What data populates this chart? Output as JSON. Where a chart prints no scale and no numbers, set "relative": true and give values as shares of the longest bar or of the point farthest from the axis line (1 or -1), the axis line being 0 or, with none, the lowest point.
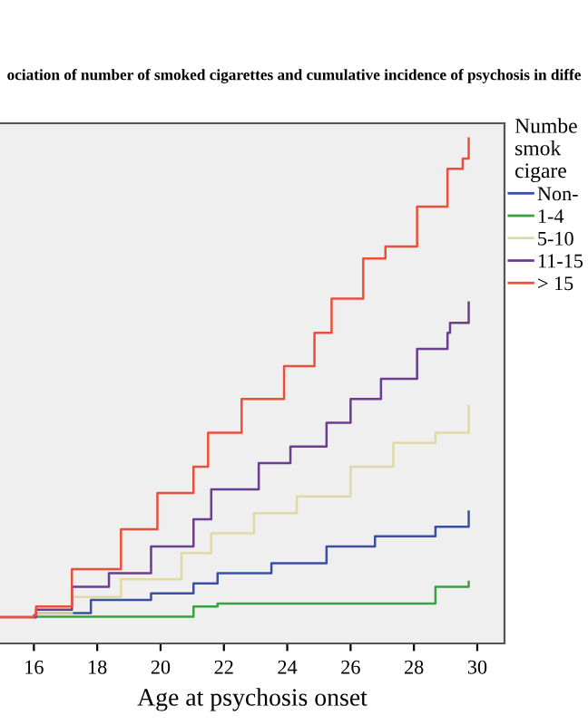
{
  "chart_data": {
    "type": "step",
    "relative": true,
    "title": "ociation of number of smoked cigarettes and cumulative incidence of psychosis in diffe",
    "xlabel": "Age at psychosis onset",
    "legend_title": "Numbe\nsmok\ncigare",
    "xlim": [
      14.93,
      30.86
    ],
    "xticks": [
      16,
      18,
      20,
      22,
      24,
      26,
      28,
      30
    ],
    "grid": false,
    "legend": "right",
    "series": [
      {
        "name": "Non-",
        "color": "#3a4fa0",
        "x": [
          16.0,
          16.07,
          17.8,
          19.7,
          21.04,
          21.8,
          23.5,
          25.24,
          26.77,
          28.68,
          29.73
        ],
        "values": [
          0.052,
          0.06,
          0.086,
          0.099,
          0.119,
          0.139,
          0.159,
          0.192,
          0.212,
          0.231,
          0.261
        ]
      },
      {
        "name": "1-4",
        "color": "#3aa040",
        "x": [
          16.0,
          16.07,
          21.04,
          21.8,
          28.68,
          29.73
        ],
        "values": [
          0.052,
          0.053,
          0.073,
          0.079,
          0.112,
          0.122
        ]
      },
      {
        "name": "5-10",
        "color": "#e0d9a6",
        "x": [
          16.0,
          16.07,
          17.2,
          18.75,
          20.66,
          21.6,
          22.95,
          24.3,
          26.0,
          27.35,
          28.68,
          29.73
        ],
        "values": [
          0.052,
          0.06,
          0.092,
          0.127,
          0.179,
          0.218,
          0.258,
          0.291,
          0.35,
          0.397,
          0.417,
          0.47
        ]
      },
      {
        "name": "11-15",
        "color": "#6a3d8f",
        "x": [
          14.93,
          16.0,
          16.07,
          17.2,
          18.37,
          19.7,
          21.04,
          21.6,
          23.1,
          24.1,
          25.24,
          26.0,
          26.96,
          28.1,
          28.68,
          29.06,
          29.14,
          29.73
        ],
        "values": [
          0.052,
          0.052,
          0.067,
          0.112,
          0.139,
          0.192,
          0.246,
          0.305,
          0.357,
          0.39,
          0.437,
          0.484,
          0.524,
          0.583,
          0.583,
          0.615,
          0.635,
          0.675
        ]
      },
      {
        "name": "> 15",
        "color": "#e8503a",
        "x": [
          14.93,
          16.0,
          16.07,
          17.2,
          18.75,
          19.9,
          21.04,
          21.5,
          22.56,
          23.9,
          24.86,
          25.4,
          26.4,
          27.1,
          28.1,
          28.68,
          29.06,
          29.54,
          29.73
        ],
        "values": [
          0.052,
          0.056,
          0.073,
          0.147,
          0.226,
          0.298,
          0.35,
          0.417,
          0.484,
          0.549,
          0.615,
          0.683,
          0.762,
          0.786,
          0.865,
          0.865,
          0.94,
          0.96,
          1.0
        ]
      }
    ]
  }
}
